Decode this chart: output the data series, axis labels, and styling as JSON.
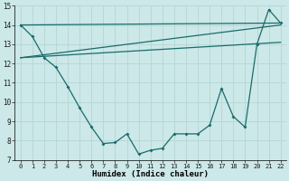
{
  "title": "",
  "xlabel": "Humidex (Indice chaleur)",
  "xlim": [
    -0.5,
    22.5
  ],
  "ylim": [
    7,
    15
  ],
  "xticks": [
    0,
    1,
    2,
    3,
    4,
    5,
    6,
    7,
    8,
    9,
    10,
    11,
    12,
    13,
    14,
    15,
    16,
    17,
    18,
    19,
    20,
    21,
    22
  ],
  "yticks": [
    7,
    8,
    9,
    10,
    11,
    12,
    13,
    14,
    15
  ],
  "bg_color": "#cce8e8",
  "line_color": "#1a6b6b",
  "grid_color": "#b8d8d8",
  "curve1_x": [
    0,
    1,
    2,
    3,
    4,
    5,
    6,
    7,
    8,
    9,
    10,
    11,
    12,
    13,
    14,
    15,
    16,
    17,
    18,
    19,
    20,
    21,
    22
  ],
  "curve1_y": [
    14.0,
    13.4,
    12.3,
    11.8,
    10.8,
    9.7,
    8.7,
    7.85,
    7.9,
    8.35,
    7.3,
    7.5,
    7.6,
    8.35,
    8.35,
    8.35,
    8.8,
    10.7,
    9.25,
    8.7,
    13.0,
    14.8,
    14.1
  ],
  "line2_x": [
    0,
    22
  ],
  "line2_y": [
    14.0,
    14.1
  ],
  "line3_x": [
    0,
    22
  ],
  "line3_y": [
    12.3,
    14.0
  ],
  "line4_x": [
    0,
    22
  ],
  "line4_y": [
    12.3,
    13.1
  ]
}
